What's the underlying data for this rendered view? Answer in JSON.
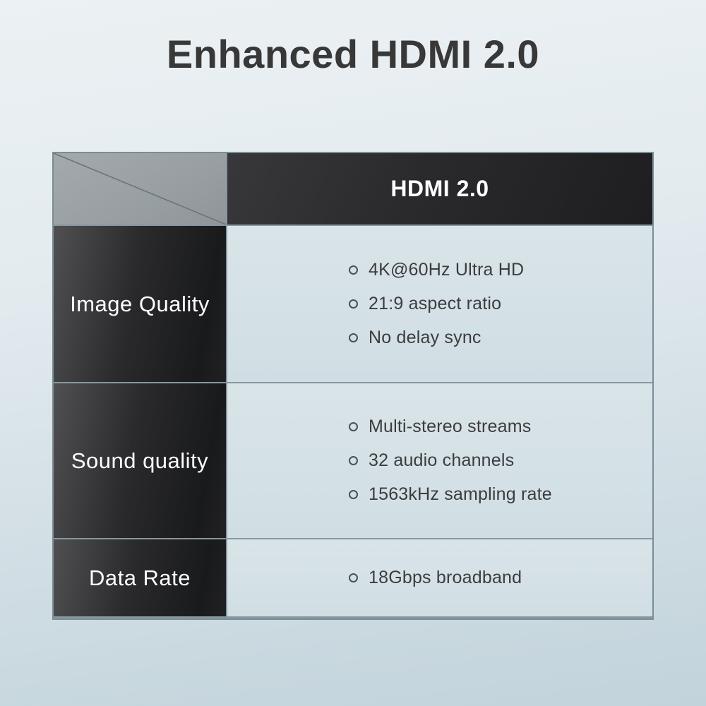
{
  "page": {
    "title": "Enhanced HDMI 2.0"
  },
  "table": {
    "header": {
      "label": "HDMI 2.0"
    },
    "rows": [
      {
        "label": "Image Quality",
        "items": [
          "4K@60Hz Ultra HD",
          "21:9 aspect ratio",
          "No delay sync"
        ]
      },
      {
        "label": "Sound quality",
        "items": [
          "Multi-stereo streams",
          "32 audio channels",
          "1563kHz sampling rate"
        ]
      },
      {
        "label": "Data Rate",
        "items": [
          "18Gbps broadband"
        ]
      }
    ]
  },
  "colors": {
    "background_top": "#ecf1f3",
    "background_bottom": "#c2d3db",
    "corner_cell": "#9aa1a5",
    "dark_cell": "#232325",
    "content_cell": "#d4e1e6",
    "title_text": "#383839",
    "item_text": "#3c3c3d",
    "label_text": "#ffffff"
  },
  "chart_data": {
    "type": "table",
    "title": "Enhanced HDMI 2.0",
    "columns": [
      "",
      "HDMI 2.0"
    ],
    "rows": [
      [
        "Image Quality",
        "4K@60Hz Ultra HD; 21:9 aspect ratio; No delay sync"
      ],
      [
        "Sound quality",
        "Multi-stereo streams; 32 audio channels; 1563kHz sampling rate"
      ],
      [
        "Data Rate",
        "18Gbps broadband"
      ]
    ]
  }
}
